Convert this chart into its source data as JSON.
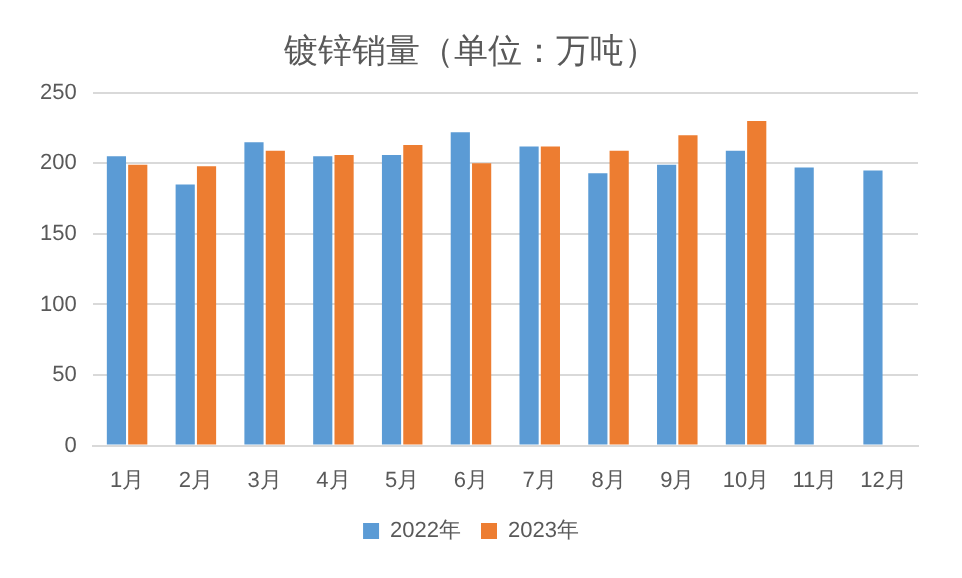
{
  "chart_data": {
    "type": "bar",
    "title": "镀锌销量（单位：万吨）",
    "categories": [
      "1月",
      "2月",
      "3月",
      "4月",
      "5月",
      "6月",
      "7月",
      "8月",
      "9月",
      "10月",
      "11月",
      "12月"
    ],
    "series": [
      {
        "name": "2022年",
        "color": "#5b9bd5",
        "values": [
          205,
          185,
          215,
          205,
          206,
          222,
          212,
          193,
          199,
          209,
          197,
          195
        ]
      },
      {
        "name": "2023年",
        "color": "#ed7d31",
        "values": [
          199,
          198,
          209,
          206,
          213,
          200,
          212,
          209,
          220,
          230,
          null,
          null
        ]
      }
    ],
    "ylim": [
      0,
      250
    ],
    "yticks": [
      0,
      50,
      100,
      150,
      200,
      250
    ],
    "grid": "y",
    "legend": "bottom"
  }
}
